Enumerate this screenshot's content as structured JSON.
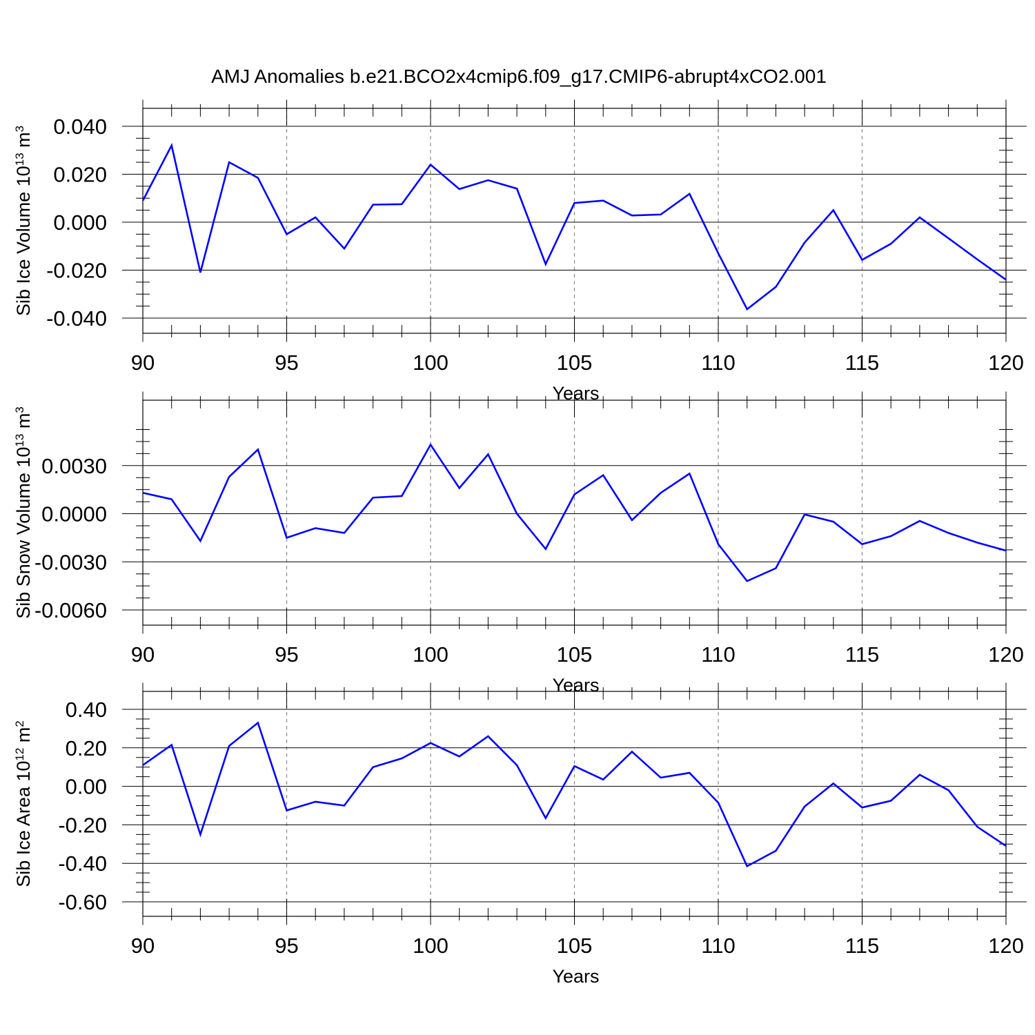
{
  "figure": {
    "title": "AMJ Anomalies b.e21.BCO2x4cmip6.f09_g17.CMIP6-abrupt4xCO2.001"
  },
  "colors": {
    "line": "#0000ff",
    "axis": "#000000",
    "grid": "#888888"
  },
  "chart_data": [
    {
      "type": "line",
      "title": "AMJ Anomalies b.e21.BCO2x4cmip6.f09_g17.CMIP6-abrupt4xCO2.001",
      "xlabel": "Years",
      "ylabel": "Sib Ice Volume 10",
      "ylabel_exp": "13",
      "ylabel_unit": " m",
      "ylabel_unit_exp": "3",
      "xlim": [
        90,
        120
      ],
      "ylim": [
        -0.04,
        0.04
      ],
      "x_ticks": [
        "90",
        "95",
        "100",
        "105",
        "110",
        "115",
        "120"
      ],
      "y_ticks": [
        {
          "v": 0.04,
          "label": "0.040"
        },
        {
          "v": 0.02,
          "label": "0.020"
        },
        {
          "v": 0.0,
          "label": "0.000"
        },
        {
          "v": -0.02,
          "label": "-0.020"
        },
        {
          "v": -0.04,
          "label": "-0.040"
        }
      ],
      "grid": "vertical dashed at major x ticks",
      "x": [
        90,
        91,
        92,
        93,
        94,
        95,
        96,
        97,
        98,
        99,
        100,
        101,
        102,
        103,
        104,
        105,
        106,
        107,
        108,
        109,
        110,
        111,
        112,
        113,
        114,
        115,
        116,
        117,
        118,
        119,
        120
      ],
      "series": [
        {
          "values": [
            0.009,
            0.032,
            -0.021,
            0.025,
            0.0185,
            -0.005,
            0.002,
            -0.011,
            0.0073,
            0.0075,
            0.024,
            0.0138,
            0.0175,
            0.014,
            -0.0175,
            0.008,
            0.009,
            0.0028,
            0.0032,
            0.0118,
            -0.013,
            -0.0363,
            -0.027,
            -0.0085,
            0.005,
            -0.0157,
            -0.009,
            0.002,
            -0.0067,
            -0.0155,
            -0.024
          ]
        }
      ]
    },
    {
      "type": "line",
      "xlabel": "Years",
      "ylabel": "Sib Snow Volume 10",
      "ylabel_exp": "13",
      "ylabel_unit": " m",
      "ylabel_unit_exp": "3",
      "xlim": [
        90,
        120
      ],
      "ylim": [
        -0.006,
        0.006
      ],
      "x_ticks": [
        "90",
        "95",
        "100",
        "105",
        "110",
        "115",
        "120"
      ],
      "y_ticks": [
        {
          "v": 0.003,
          "label": "0.0030"
        },
        {
          "v": 0.0,
          "label": "0.0000"
        },
        {
          "v": -0.003,
          "label": "-0.0030"
        },
        {
          "v": -0.006,
          "label": "-0.0060"
        }
      ],
      "grid": "vertical dashed at major x ticks",
      "x": [
        90,
        91,
        92,
        93,
        94,
        95,
        96,
        97,
        98,
        99,
        100,
        101,
        102,
        103,
        104,
        105,
        106,
        107,
        108,
        109,
        110,
        111,
        112,
        113,
        114,
        115,
        116,
        117,
        118,
        119,
        120
      ],
      "series": [
        {
          "values": [
            0.0013,
            0.0009,
            -0.0017,
            0.0023,
            0.004,
            -0.0015,
            -0.0009,
            -0.0012,
            0.001,
            0.0011,
            0.0043,
            0.0016,
            0.0037,
            0.0,
            -0.0022,
            0.0012,
            0.0024,
            -0.0004,
            0.0013,
            0.0025,
            -0.0019,
            -0.0042,
            -0.0034,
            -5e-05,
            -0.0005,
            -0.0019,
            -0.0014,
            -0.00045,
            -0.0012,
            -0.0018,
            -0.0023
          ]
        }
      ]
    },
    {
      "type": "line",
      "xlabel": "Years",
      "ylabel": "Sib Ice Area 10",
      "ylabel_exp": "12",
      "ylabel_unit": " m",
      "ylabel_unit_exp": "2",
      "xlim": [
        90,
        120
      ],
      "ylim": [
        -0.6,
        0.4
      ],
      "x_ticks": [
        "90",
        "95",
        "100",
        "105",
        "110",
        "115",
        "120"
      ],
      "y_ticks": [
        {
          "v": 0.4,
          "label": "0.40"
        },
        {
          "v": 0.2,
          "label": "0.20"
        },
        {
          "v": 0.0,
          "label": "0.00"
        },
        {
          "v": -0.2,
          "label": "-0.20"
        },
        {
          "v": -0.4,
          "label": "-0.40"
        },
        {
          "v": -0.6,
          "label": "-0.60"
        }
      ],
      "grid": "vertical dashed at major x ticks",
      "x": [
        90,
        91,
        92,
        93,
        94,
        95,
        96,
        97,
        98,
        99,
        100,
        101,
        102,
        103,
        104,
        105,
        106,
        107,
        108,
        109,
        110,
        111,
        112,
        113,
        114,
        115,
        116,
        117,
        118,
        119,
        120
      ],
      "series": [
        {
          "values": [
            0.11,
            0.215,
            -0.25,
            0.21,
            0.33,
            -0.125,
            -0.08,
            -0.1,
            0.1,
            0.145,
            0.225,
            0.155,
            0.26,
            0.11,
            -0.165,
            0.105,
            0.035,
            0.18,
            0.045,
            0.07,
            -0.085,
            -0.415,
            -0.335,
            -0.105,
            0.015,
            -0.11,
            -0.075,
            0.06,
            -0.02,
            -0.21,
            -0.31
          ]
        }
      ]
    }
  ]
}
